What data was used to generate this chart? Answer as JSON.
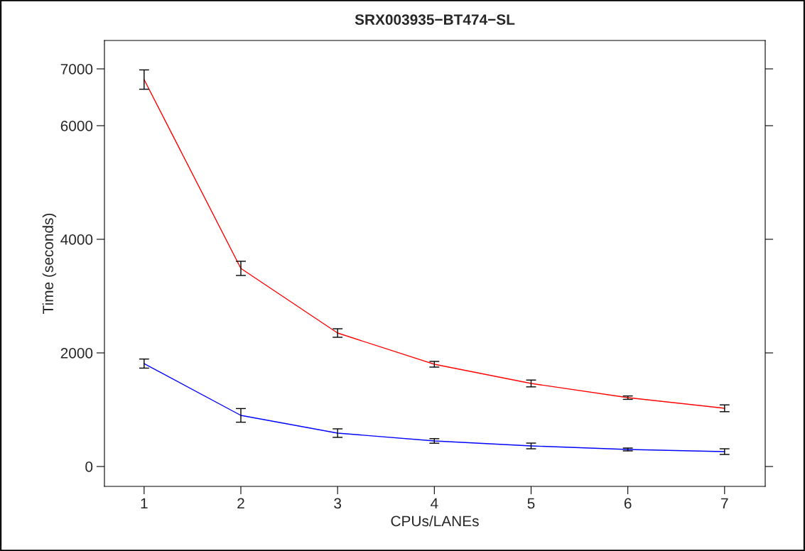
{
  "chart_data": {
    "type": "line",
    "title": "SRX003935−BT474−SL",
    "xlabel": "CPUs/LANEs",
    "ylabel": "Time (seconds)",
    "x": [
      1,
      2,
      3,
      4,
      5,
      6,
      7
    ],
    "series": [
      {
        "color": "#ff0000",
        "values": [
          6812,
          3488,
          2350,
          1800,
          1462,
          1212,
          1025
        ],
        "errors": [
          170,
          125,
          75,
          50,
          60,
          30,
          60
        ]
      },
      {
        "color": "#0000ff",
        "values": [
          1812,
          900,
          588,
          450,
          362,
          300,
          262
        ],
        "errors": [
          80,
          120,
          75,
          40,
          50,
          25,
          50
        ]
      }
    ],
    "xlim": [
      0.59,
      7.42
    ],
    "ylim": [
      -350,
      7500
    ],
    "xticks": [
      1,
      2,
      3,
      4,
      5,
      6,
      7
    ],
    "yticks": [
      0,
      2000,
      4000,
      6000,
      7000
    ],
    "grid": false,
    "legend": false,
    "marker": "none"
  }
}
